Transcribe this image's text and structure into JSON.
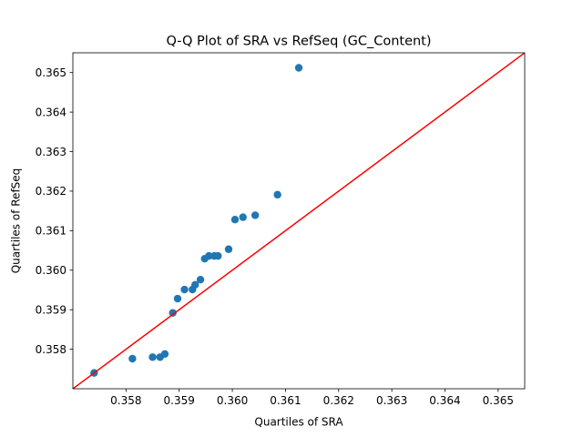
{
  "chart_data": {
    "type": "scatter",
    "title": "Q-Q Plot of SRA vs RefSeq (GC_Content)",
    "xlabel": "Quartiles of SRA",
    "ylabel": "Quartiles of RefSeq",
    "xlim": [
      0.357,
      0.3655
    ],
    "ylim": [
      0.357,
      0.3655
    ],
    "xticks": [
      0.358,
      0.359,
      0.36,
      0.361,
      0.362,
      0.363,
      0.364,
      0.365
    ],
    "yticks": [
      0.358,
      0.359,
      0.36,
      0.361,
      0.362,
      0.363,
      0.364,
      0.365
    ],
    "xtick_labels": [
      "0.358",
      "0.359",
      "0.360",
      "0.361",
      "0.362",
      "0.363",
      "0.364",
      "0.365"
    ],
    "ytick_labels": [
      "0.358",
      "0.359",
      "0.360",
      "0.361",
      "0.362",
      "0.363",
      "0.364",
      "0.365"
    ],
    "grid": false,
    "point_color": "#1f77b4",
    "reference_line_color": "#ff0000",
    "reference_line": [
      [
        0.357,
        0.357
      ],
      [
        0.3655,
        0.3655
      ]
    ],
    "points": [
      {
        "x": 0.3574,
        "y": 0.3574
      },
      {
        "x": 0.35812,
        "y": 0.35776
      },
      {
        "x": 0.3585,
        "y": 0.3578
      },
      {
        "x": 0.35864,
        "y": 0.3578
      },
      {
        "x": 0.35873,
        "y": 0.35788
      },
      {
        "x": 0.35888,
        "y": 0.35892
      },
      {
        "x": 0.35897,
        "y": 0.35928
      },
      {
        "x": 0.3591,
        "y": 0.35951
      },
      {
        "x": 0.35925,
        "y": 0.35951
      },
      {
        "x": 0.3593,
        "y": 0.35963
      },
      {
        "x": 0.3594,
        "y": 0.35976
      },
      {
        "x": 0.35948,
        "y": 0.36029
      },
      {
        "x": 0.35956,
        "y": 0.36036
      },
      {
        "x": 0.35966,
        "y": 0.36036
      },
      {
        "x": 0.35973,
        "y": 0.36036
      },
      {
        "x": 0.35993,
        "y": 0.36053
      },
      {
        "x": 0.36005,
        "y": 0.36128
      },
      {
        "x": 0.3602,
        "y": 0.36134
      },
      {
        "x": 0.36043,
        "y": 0.36139
      },
      {
        "x": 0.36085,
        "y": 0.36191
      },
      {
        "x": 0.36125,
        "y": 0.36512
      }
    ]
  }
}
